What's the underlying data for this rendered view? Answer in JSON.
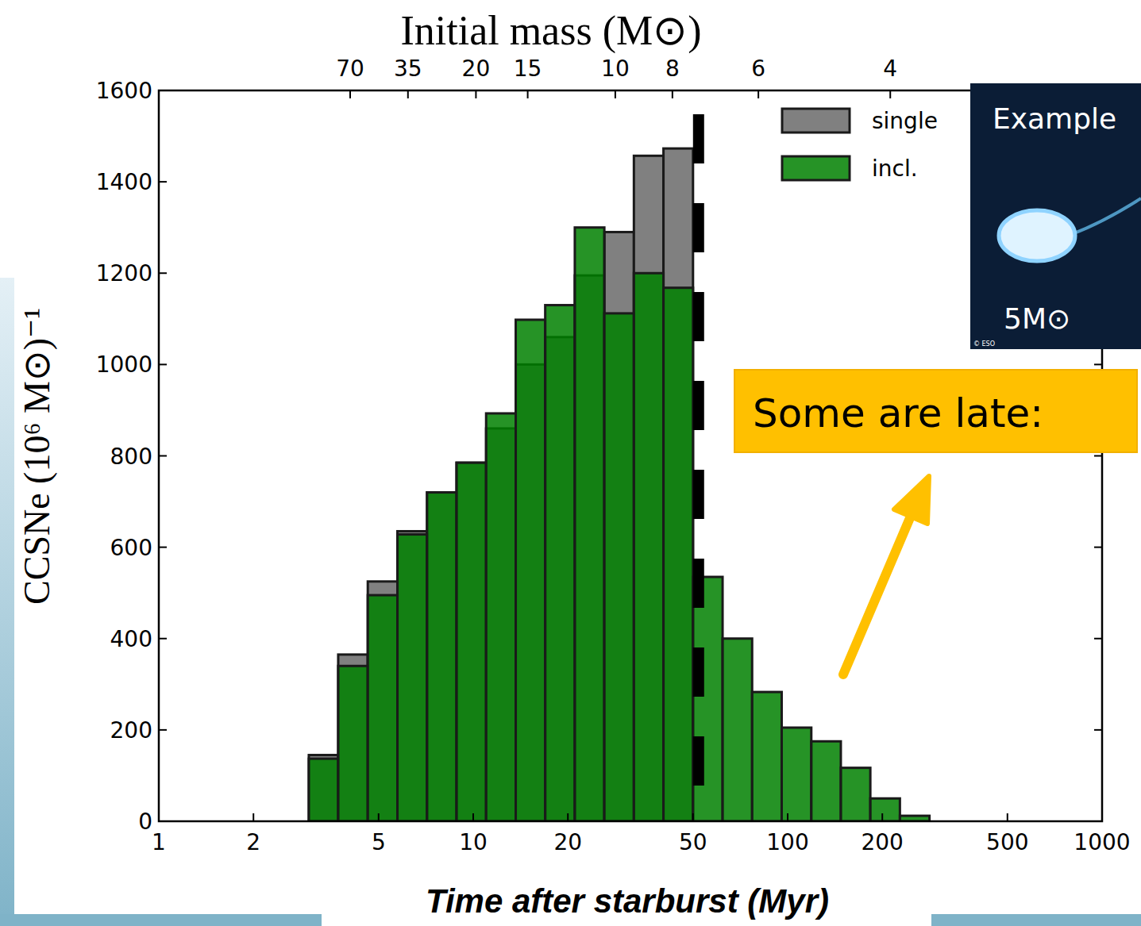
{
  "chart_data": {
    "type": "histogram",
    "x_label": "Time after starburst (Myr)",
    "y_label": "CCSNe (10⁶ M⊙)⁻¹",
    "x2_label": "Initial mass (M⊙)",
    "log": "x",
    "xlim": [
      1,
      1000
    ],
    "ylim": [
      0,
      1600
    ],
    "xticks": [
      1,
      2,
      5,
      10,
      20,
      50,
      100,
      200,
      500,
      1000
    ],
    "yticks": [
      0,
      200,
      400,
      600,
      800,
      1000,
      1200,
      1400,
      1600
    ],
    "x2ticks": [
      {
        "value": 4.06,
        "label": "70"
      },
      {
        "value": 6.2,
        "label": "35"
      },
      {
        "value": 10.2,
        "label": "20"
      },
      {
        "value": 14.9,
        "label": "15"
      },
      {
        "value": 28.3,
        "label": "10"
      },
      {
        "value": 43,
        "label": "8"
      },
      {
        "value": 80.7,
        "label": "6"
      },
      {
        "value": 212,
        "label": "4"
      }
    ],
    "reference_x": 50,
    "bins": [
      3.0,
      3.72,
      4.62,
      5.74,
      7.13,
      8.85,
      10.99,
      13.65,
      16.94,
      21.04,
      26.12,
      32.43,
      40.27,
      50.0,
      62.09,
      77.09,
      95.72,
      118.9,
      147.6,
      183.2,
      227.5,
      282.5
    ],
    "legend": "upper right",
    "series": [
      {
        "name": "single",
        "color": "#808080",
        "values": [
          145,
          365,
          525,
          635,
          720,
          785,
          860,
          1000,
          1060,
          1195,
          1290,
          1457,
          1473,
          0,
          0,
          0,
          0,
          0,
          0,
          0,
          0
        ]
      },
      {
        "name": "incl.",
        "color": "#008000",
        "values": [
          137,
          340,
          495,
          628,
          720,
          785,
          893,
          1098,
          1130,
          1300,
          1112,
          1200,
          1168,
          535,
          400,
          283,
          205,
          175,
          117,
          50,
          12
        ]
      }
    ],
    "annotations": [
      "Some are late:",
      "Example",
      "5M⊙",
      "© ESO"
    ]
  }
}
